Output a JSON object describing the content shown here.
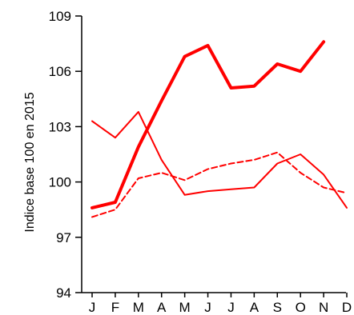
{
  "chart_data": {
    "type": "line",
    "title": "",
    "xlabel": "",
    "ylabel": "Indice base 100 en 2015",
    "categories": [
      "J",
      "F",
      "M",
      "A",
      "M",
      "J",
      "J",
      "A",
      "S",
      "O",
      "N",
      "D"
    ],
    "y_ticks": [
      "94",
      "97",
      "100",
      "103",
      "106",
      "109"
    ],
    "ylim": [
      94,
      109
    ],
    "grid": false,
    "legend": "none",
    "series": [
      {
        "values": [
          98.6,
          98.9,
          101.9,
          104.4,
          106.8,
          107.4,
          105.1,
          105.2,
          106.4,
          106.0,
          107.6,
          null
        ],
        "color": "#ff0000",
        "style": "solid-thick"
      },
      {
        "values": [
          103.3,
          102.4,
          103.8,
          101.2,
          99.3,
          99.5,
          99.6,
          99.7,
          101.0,
          101.5,
          100.4,
          98.6
        ],
        "color": "#ff0000",
        "style": "solid-thin"
      },
      {
        "values": [
          98.1,
          98.5,
          100.2,
          100.5,
          100.1,
          100.7,
          101.0,
          101.2,
          101.6,
          100.5,
          99.7,
          99.4
        ],
        "color": "#ff0000",
        "style": "dashed"
      }
    ]
  }
}
